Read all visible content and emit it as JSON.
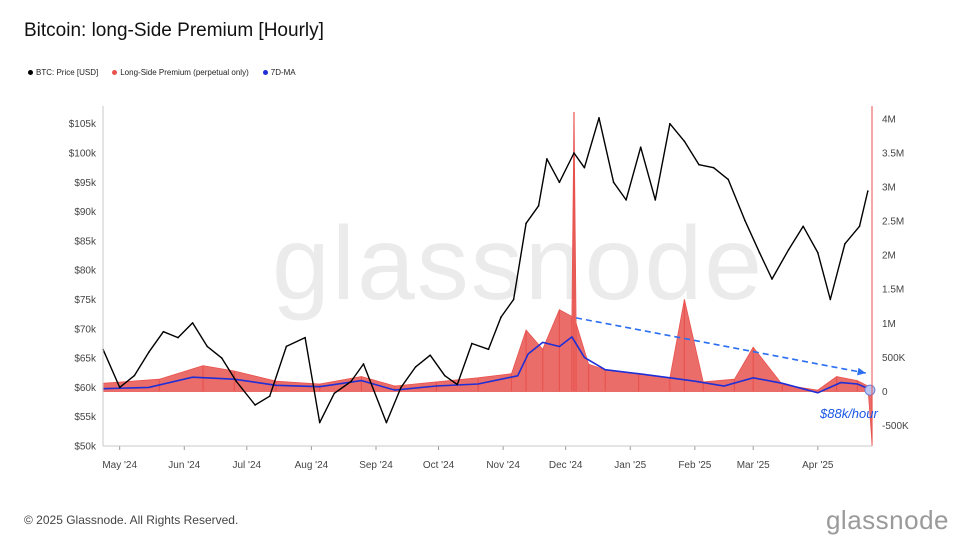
{
  "title": "Bitcoin: long-Side Premium [Hourly]",
  "legend": [
    {
      "label": "BTC: Price [USD]",
      "color": "#000000"
    },
    {
      "label": "Long-Side Premium (perpetual only)",
      "color": "#e8534f"
    },
    {
      "label": "7D-MA",
      "color": "#1f2fd6"
    }
  ],
  "footer": "© 2025 Glassnode. All Rights Reserved.",
  "logo": "glassnode",
  "watermark": "glassnode",
  "annotation": "$88k/hour",
  "colors": {
    "price": "#000000",
    "premium": "#e8534f",
    "ma": "#1f2fd6",
    "trend": "#2b6ff0"
  },
  "chart_data": {
    "type": "line",
    "x_ticks": [
      "May '24",
      "Jun '24",
      "Jul '24",
      "Aug '24",
      "Sep '24",
      "Oct '24",
      "Nov '24",
      "Dec '24",
      "Jan '25",
      "Feb '25",
      "Mar '25",
      "Apr '25"
    ],
    "y_left_ticks": [
      "$105k",
      "$100k",
      "$95k",
      "$90k",
      "$85k",
      "$80k",
      "$75k",
      "$70k",
      "$65k",
      "$60k",
      "$55k",
      "$50k"
    ],
    "y_left_range": [
      50000,
      107000
    ],
    "y_right_ticks": [
      "4M",
      "3.5M",
      "3M",
      "2.5M",
      "2M",
      "1.5M",
      "1M",
      "500K",
      "0",
      "-500K"
    ],
    "y_right_range": [
      -800000,
      4100000
    ],
    "x_range": [
      "2024-04-23",
      "2025-04-27"
    ],
    "series": [
      {
        "name": "BTC: Price [USD]",
        "axis": "left",
        "x": [
          "2024-04-23",
          "2024-05-01",
          "2024-05-08",
          "2024-05-15",
          "2024-05-22",
          "2024-05-29",
          "2024-06-05",
          "2024-06-12",
          "2024-06-19",
          "2024-06-26",
          "2024-07-05",
          "2024-07-12",
          "2024-07-20",
          "2024-07-29",
          "2024-08-05",
          "2024-08-12",
          "2024-08-20",
          "2024-08-26",
          "2024-09-06",
          "2024-09-13",
          "2024-09-20",
          "2024-09-27",
          "2024-10-04",
          "2024-10-10",
          "2024-10-17",
          "2024-10-25",
          "2024-10-31",
          "2024-11-06",
          "2024-11-12",
          "2024-11-18",
          "2024-11-22",
          "2024-11-28",
          "2024-12-05",
          "2024-12-10",
          "2024-12-17",
          "2024-12-24",
          "2024-12-30",
          "2025-01-06",
          "2025-01-13",
          "2025-01-20",
          "2025-01-27",
          "2025-02-03",
          "2025-02-10",
          "2025-02-17",
          "2025-02-25",
          "2025-03-04",
          "2025-03-10",
          "2025-03-18",
          "2025-03-25",
          "2025-04-01",
          "2025-04-07",
          "2025-04-14",
          "2025-04-21",
          "2025-04-25"
        ],
        "values": [
          66500,
          60000,
          62000,
          66000,
          69500,
          68500,
          71000,
          67000,
          65000,
          61000,
          57000,
          58500,
          67000,
          68500,
          54000,
          59000,
          61000,
          64000,
          54000,
          60000,
          63500,
          65500,
          62000,
          60500,
          67500,
          66500,
          72000,
          75000,
          88000,
          91000,
          99000,
          95000,
          100000,
          97500,
          106000,
          95000,
          92000,
          101000,
          92000,
          105000,
          102000,
          98000,
          97500,
          95500,
          88500,
          83000,
          78500,
          83500,
          87500,
          83000,
          75000,
          84500,
          87500,
          93500
        ]
      },
      {
        "name": "Long-Side Premium (perpetual only)",
        "axis": "right",
        "x": [
          "2024-04-23",
          "2024-05-20",
          "2024-06-10",
          "2024-06-25",
          "2024-07-15",
          "2024-08-05",
          "2024-08-25",
          "2024-09-10",
          "2024-09-30",
          "2024-10-20",
          "2024-11-05",
          "2024-11-12",
          "2024-11-20",
          "2024-11-28",
          "2024-12-04",
          "2024-12-05",
          "2024-12-06",
          "2024-12-12",
          "2024-12-20",
          "2025-01-05",
          "2025-01-20",
          "2025-01-27",
          "2025-02-05",
          "2025-02-20",
          "2025-03-01",
          "2025-03-15",
          "2025-04-01",
          "2025-04-10",
          "2025-04-20",
          "2025-04-25",
          "2025-04-27"
        ],
        "values": [
          120000,
          180000,
          380000,
          300000,
          150000,
          110000,
          220000,
          80000,
          140000,
          200000,
          260000,
          900000,
          620000,
          1200000,
          1100000,
          4100000,
          1000000,
          400000,
          320000,
          260000,
          200000,
          1350000,
          140000,
          180000,
          650000,
          100000,
          20000,
          220000,
          160000,
          80000,
          -750000
        ]
      },
      {
        "name": "7D-MA",
        "axis": "right",
        "x": [
          "2024-04-23",
          "2024-05-15",
          "2024-06-05",
          "2024-06-25",
          "2024-07-15",
          "2024-08-05",
          "2024-08-25",
          "2024-09-10",
          "2024-09-30",
          "2024-10-20",
          "2024-11-08",
          "2024-11-13",
          "2024-11-20",
          "2024-11-28",
          "2024-12-04",
          "2024-12-10",
          "2024-12-20",
          "2025-01-05",
          "2025-01-20",
          "2025-02-01",
          "2025-02-15",
          "2025-03-01",
          "2025-03-15",
          "2025-04-01",
          "2025-04-12",
          "2025-04-20",
          "2025-04-27"
        ],
        "values": [
          40000,
          60000,
          210000,
          180000,
          90000,
          70000,
          160000,
          20000,
          80000,
          110000,
          230000,
          550000,
          720000,
          660000,
          800000,
          500000,
          320000,
          260000,
          200000,
          150000,
          80000,
          200000,
          120000,
          -20000,
          130000,
          110000,
          20000
        ]
      }
    ],
    "trend_annotation": {
      "from": [
        "2024-12-06",
        1080000
      ],
      "to": [
        "2025-04-24",
        270000
      ],
      "label": "$88k/hour"
    }
  }
}
